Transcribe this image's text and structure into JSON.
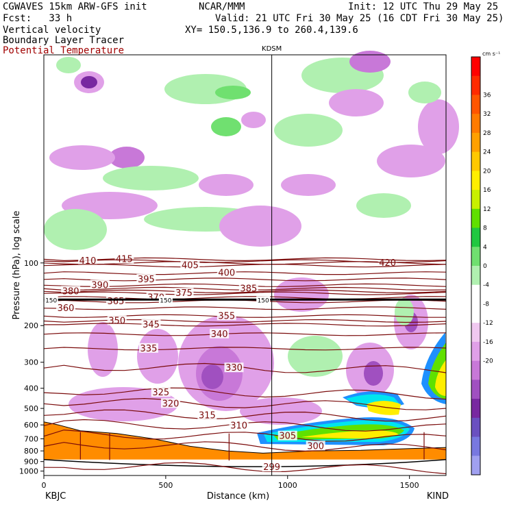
{
  "header": {
    "model": "CGWAVES 15km ARW-GFS init",
    "org": "NCAR/MMM",
    "init": "Init: 12 UTC Thu 29 May 25",
    "fcst": "Fcst:   33 h",
    "valid": "Valid: 21 UTC Fri 30 May 25 (16 CDT Fri 30 May 25)",
    "field1": "Vertical velocity",
    "xy": "XY= 150.5,136.9 to 260.4,139.6",
    "field2": "Boundary Layer Tracer",
    "field3": "Potential Temperature",
    "station_marker": "KDSM"
  },
  "colors": {
    "theta": "#7a0a0a",
    "terrain": "#ff8c00",
    "frame": "#000000"
  },
  "chart_data": {
    "type": "heatmap",
    "title": "Vertical velocity / Boundary Layer Tracer / Potential Temperature cross section",
    "xlabel": "Distance (km)",
    "ylabel": "Pressure (hPa), log scale",
    "xlim": [
      0,
      1650
    ],
    "ylim": [
      1050,
      10
    ],
    "y_scale": "log",
    "x_ticks": [
      "0",
      "500",
      "1000",
      "1500"
    ],
    "x_tick_values": [
      0,
      500,
      1000,
      1500
    ],
    "y_ticks": [
      "100",
      "200",
      "300",
      "400",
      "500",
      "600",
      "700",
      "800",
      "900",
      "1000"
    ],
    "y_tick_values": [
      100,
      200,
      300,
      400,
      500,
      600,
      700,
      800,
      900,
      1000
    ],
    "endpoints": {
      "left": "KBJC",
      "right": "KIND"
    },
    "marker": {
      "label": "KDSM",
      "x": 935
    },
    "colorbar": {
      "units": "cm s⁻¹",
      "labels": [
        "36",
        "32",
        "28",
        "24",
        "20",
        "16",
        "12",
        "8",
        "4",
        "0",
        "-4",
        "-8",
        "-12",
        "-16",
        "-20"
      ],
      "label_values": [
        36,
        32,
        28,
        24,
        20,
        16,
        12,
        8,
        4,
        0,
        -4,
        -8,
        -12,
        -16,
        -20
      ],
      "colors": [
        "#ff0000",
        "#ff2a00",
        "#ff5500",
        "#ff7b00",
        "#ffa000",
        "#ffc800",
        "#ffee00",
        "#c8f000",
        "#60e000",
        "#20c840",
        "#70e070",
        "#b0f0b0",
        "#ffffff",
        "#ffffff",
        "#f0c8f0",
        "#e0a0e8",
        "#c878d8",
        "#a050c0",
        "#7828a0",
        "#6a50c0",
        "#7878e0",
        "#a0a0f0"
      ]
    },
    "theta_contours": [
      {
        "label": "420",
        "p": 100,
        "label_x": 1410
      },
      {
        "label": "415",
        "p": 96,
        "label_x": 330
      },
      {
        "label": "410",
        "p": 98,
        "label_x": 180
      },
      {
        "label": "405",
        "p": 103,
        "label_x": 600
      },
      {
        "label": "400",
        "p": 112,
        "label_x": 750
      },
      {
        "label": "395",
        "p": 120,
        "label_x": 420
      },
      {
        "label": "390",
        "p": 128,
        "label_x": 230
      },
      {
        "label": "385",
        "p": 133,
        "label_x": 840
      },
      {
        "label": "380",
        "p": 137,
        "label_x": 110
      },
      {
        "label": "375",
        "p": 140,
        "label_x": 575
      },
      {
        "label": "370",
        "p": 147,
        "label_x": 460
      },
      {
        "label": "365",
        "p": 153,
        "label_x": 295
      },
      {
        "label": "360",
        "p": 165,
        "label_x": 90
      },
      {
        "label": "355",
        "p": 180,
        "label_x": 750
      },
      {
        "label": "350",
        "p": 190,
        "label_x": 300
      },
      {
        "label": "345",
        "p": 198,
        "label_x": 440
      },
      {
        "label": "340",
        "p": 220,
        "label_x": 720
      },
      {
        "label": "335",
        "p": 258,
        "label_x": 430
      },
      {
        "label": "330",
        "p": 320,
        "label_x": 780
      },
      {
        "label": "325",
        "p": 420,
        "label_x": 480
      },
      {
        "label": "320",
        "p": 475,
        "label_x": 520
      },
      {
        "label": "315",
        "p": 540,
        "label_x": 670
      },
      {
        "label": "310",
        "p": 605,
        "label_x": 800
      },
      {
        "label": "305",
        "p": 680,
        "label_x": 1000
      },
      {
        "label": "300",
        "p": 760,
        "label_x": 1115
      },
      {
        "label": "299",
        "p": 960,
        "label_x": 935
      }
    ],
    "tropopause_marker": {
      "label": "150",
      "p": 150
    },
    "terrain_surface_p": [
      {
        "x": 0,
        "p": 580
      },
      {
        "x": 60,
        "p": 600
      },
      {
        "x": 150,
        "p": 640
      },
      {
        "x": 300,
        "p": 660
      },
      {
        "x": 450,
        "p": 700
      },
      {
        "x": 600,
        "p": 760
      },
      {
        "x": 750,
        "p": 800
      },
      {
        "x": 900,
        "p": 820
      },
      {
        "x": 1000,
        "p": 810
      },
      {
        "x": 1100,
        "p": 800
      },
      {
        "x": 1300,
        "p": 795
      },
      {
        "x": 1500,
        "p": 780
      },
      {
        "x": 1650,
        "p": 770
      }
    ]
  }
}
